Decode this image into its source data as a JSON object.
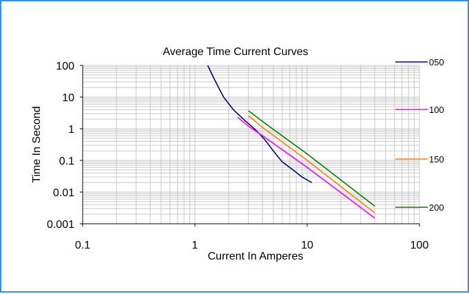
{
  "chart_data": {
    "type": "line",
    "title": "Average Time Current Curves",
    "xlabel": "Current In Amperes",
    "ylabel": "Time In Second",
    "x_scale": "log",
    "y_scale": "log",
    "xlim": [
      0.1,
      100
    ],
    "ylim": [
      0.001,
      100
    ],
    "x_ticks": [
      "0.1",
      "1",
      "10",
      "100"
    ],
    "y_ticks": [
      "100",
      "10",
      "1",
      "0.1",
      "0.01",
      "0.001"
    ],
    "grid": true,
    "legend_position": "right",
    "series": [
      {
        "name": "050",
        "color": "#00007f",
        "points": [
          [
            1.3,
            100
          ],
          [
            1.5,
            35
          ],
          [
            1.8,
            10
          ],
          [
            2.2,
            4
          ],
          [
            2.8,
            1.8
          ],
          [
            3.5,
            0.9
          ],
          [
            4.2,
            0.45
          ],
          [
            5.0,
            0.2
          ],
          [
            6.0,
            0.09
          ],
          [
            7.5,
            0.05
          ],
          [
            9.0,
            0.03
          ],
          [
            11,
            0.02
          ]
        ]
      },
      {
        "name": "100",
        "color": "#ff00ff",
        "points": [
          [
            2.4,
            2.3
          ],
          [
            3.0,
            1.2
          ],
          [
            4.0,
            0.6
          ],
          [
            10,
            0.06
          ],
          [
            40,
            0.0015
          ]
        ]
      },
      {
        "name": "150",
        "color": "#ff7f00",
        "points": [
          [
            3.0,
            2.6
          ],
          [
            4.0,
            1.1
          ],
          [
            10,
            0.1
          ],
          [
            40,
            0.0022
          ]
        ]
      },
      {
        "name": "200",
        "color": "#007f00",
        "points": [
          [
            3.0,
            3.7
          ],
          [
            4.0,
            1.7
          ],
          [
            10,
            0.16
          ],
          [
            40,
            0.0036
          ]
        ]
      }
    ]
  }
}
